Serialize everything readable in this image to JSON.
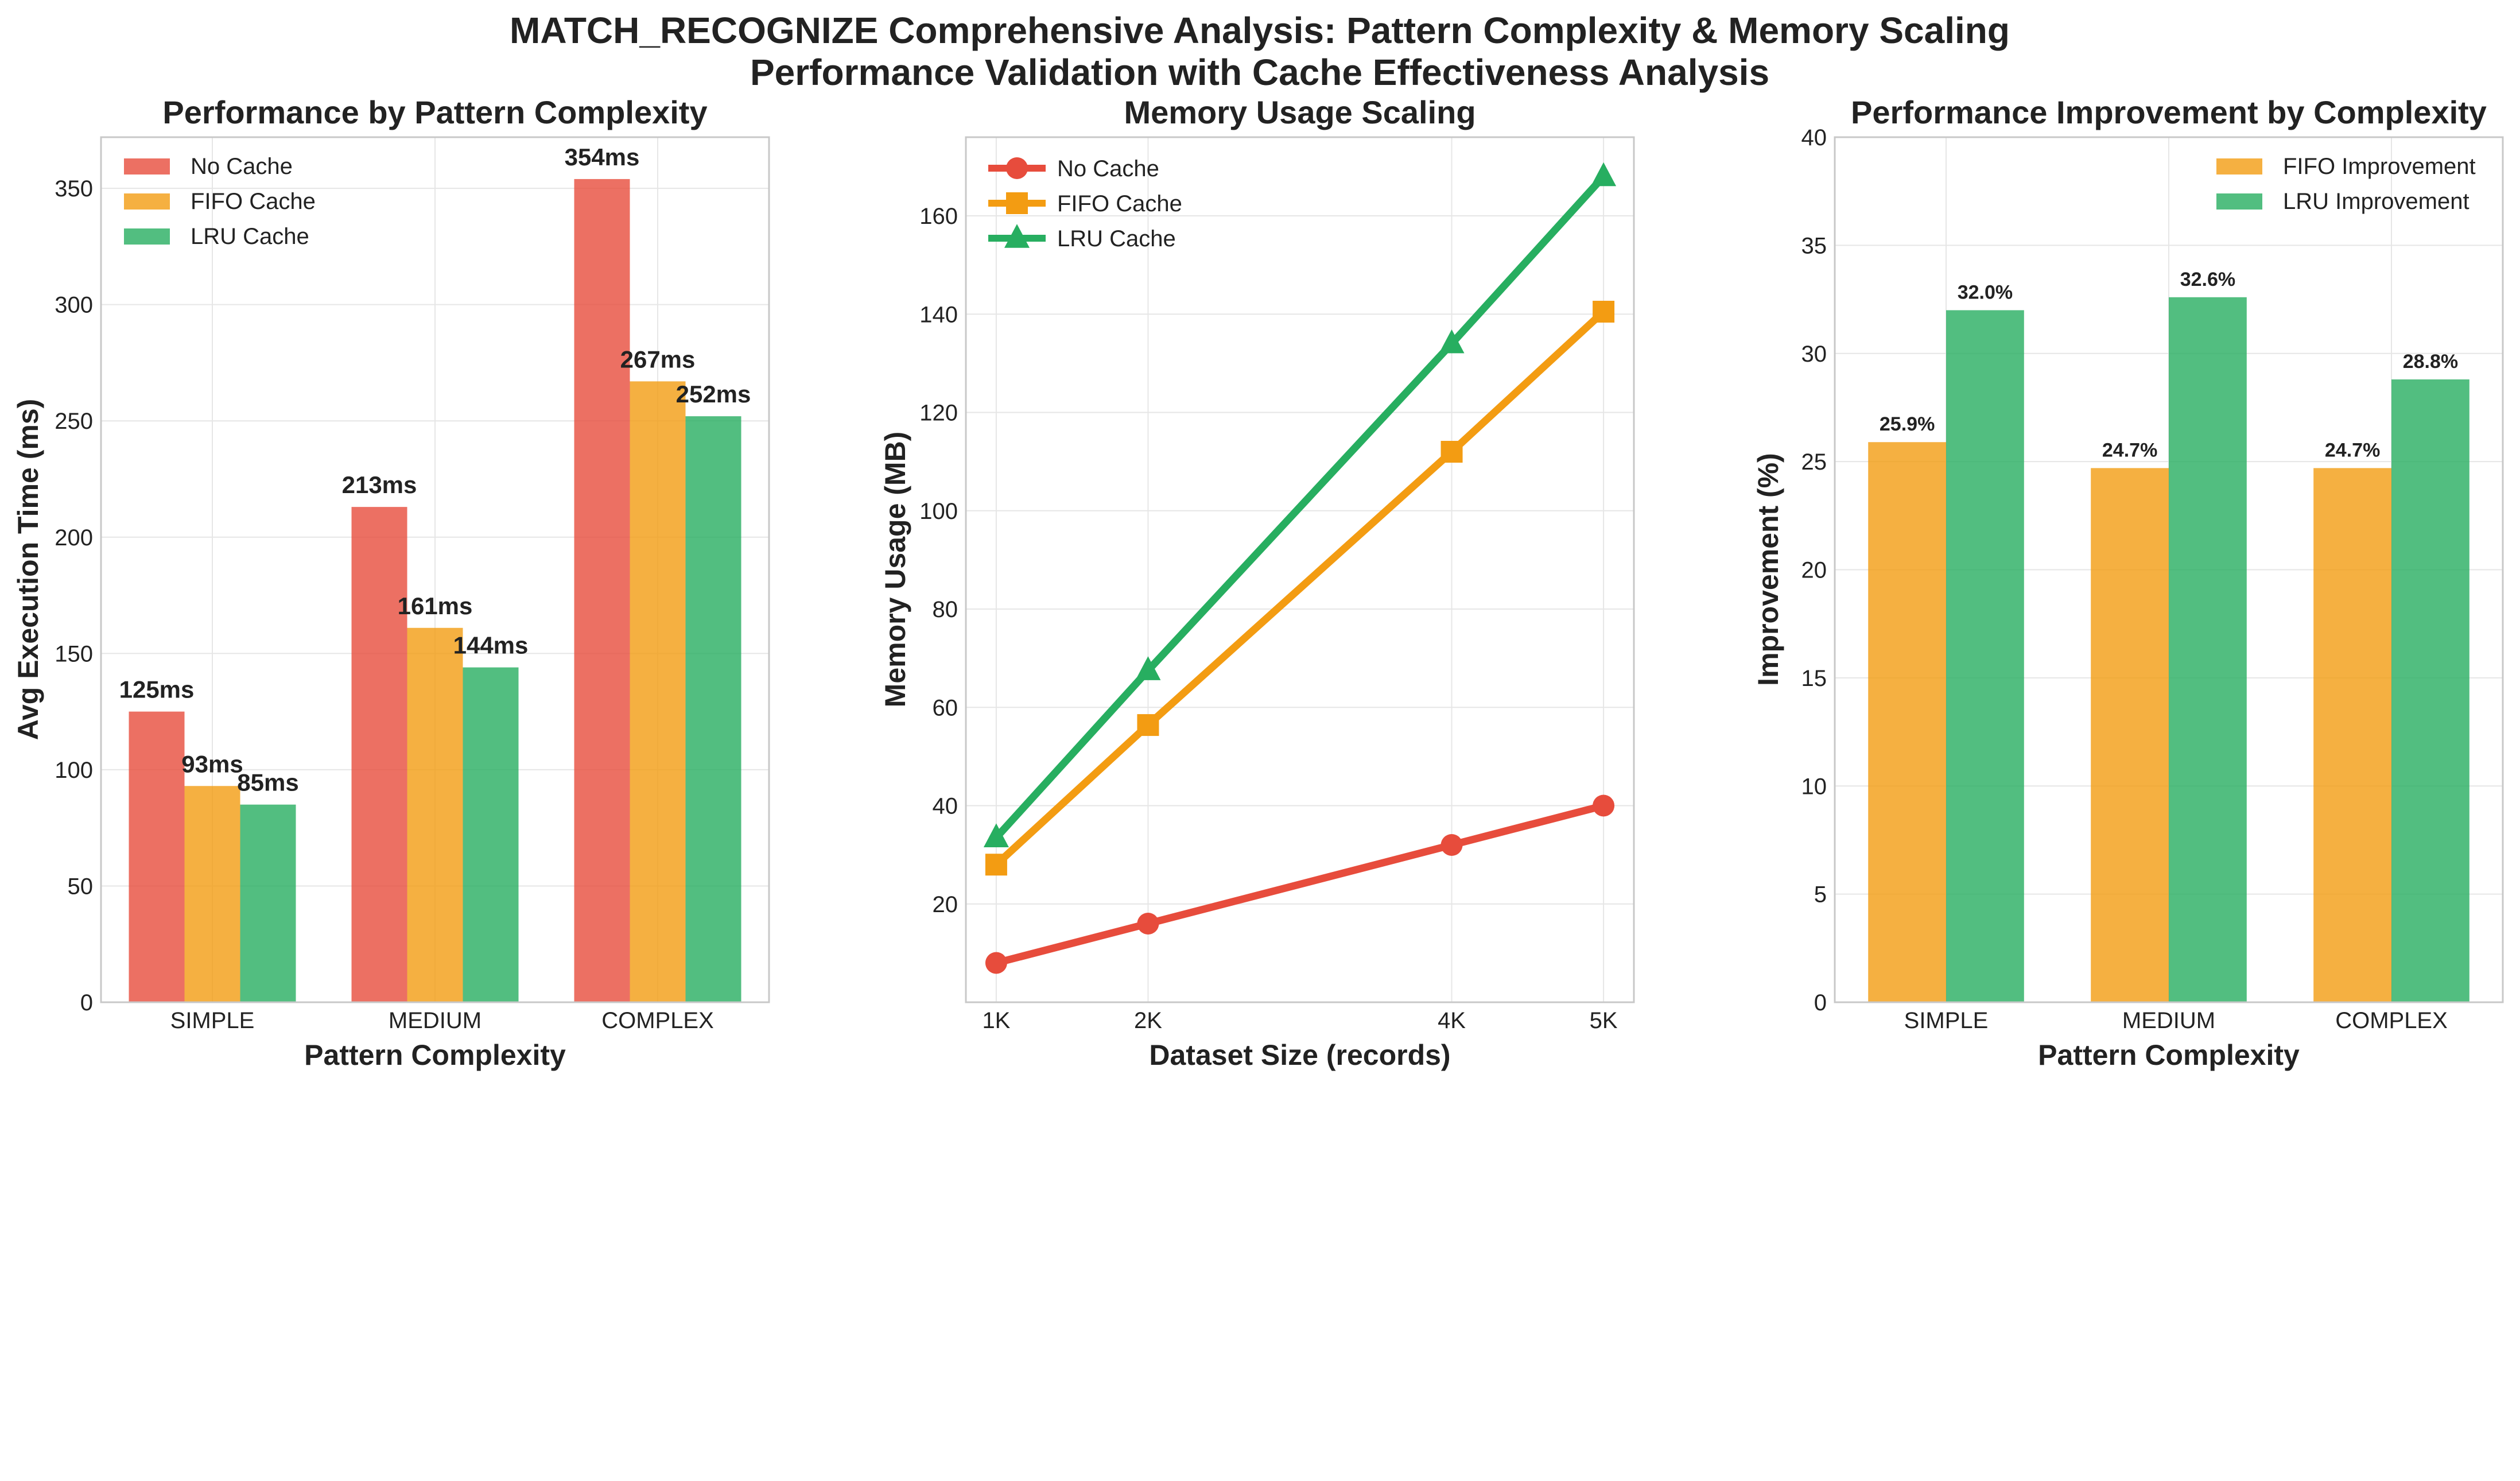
{
  "figure": {
    "title_line1": "MATCH_RECOGNIZE Comprehensive Analysis: Pattern Complexity & Memory Scaling",
    "title_line2": "Performance Validation with Cache Effectiveness Analysis"
  },
  "colors": {
    "no_cache": "#e74c3c",
    "fifo": "#f39c12",
    "lru": "#27ae60"
  },
  "chart_data": [
    {
      "id": "panel1",
      "type": "bar",
      "title": "Performance by Pattern Complexity",
      "xlabel": "Pattern Complexity",
      "ylabel": "Avg Execution Time (ms)",
      "categories": [
        "SIMPLE",
        "MEDIUM",
        "COMPLEX"
      ],
      "ylim": [
        0,
        372
      ],
      "yticks": [
        0,
        50,
        100,
        150,
        200,
        250,
        300,
        350
      ],
      "grid": true,
      "legend_position": "top-left",
      "series": [
        {
          "name": "No Cache",
          "values": [
            125,
            213,
            354
          ],
          "labels": [
            "125ms",
            "213ms",
            "354ms"
          ],
          "color": "#e74c3c"
        },
        {
          "name": "FIFO Cache",
          "values": [
            93,
            161,
            267
          ],
          "labels": [
            "93ms",
            "161ms",
            "267ms"
          ],
          "color": "#f39c12"
        },
        {
          "name": "LRU Cache",
          "values": [
            85,
            144,
            252
          ],
          "labels": [
            "85ms",
            "144ms",
            "252ms"
          ],
          "color": "#27ae60"
        }
      ]
    },
    {
      "id": "panel2",
      "type": "line",
      "title": "Memory Usage Scaling",
      "xlabel": "Dataset Size (records)",
      "ylabel": "Memory Usage (MB)",
      "x": [
        1000,
        2000,
        4000,
        5000
      ],
      "xtick_labels": [
        "1K",
        "2K",
        "4K",
        "5K"
      ],
      "xlim": [
        800,
        5200
      ],
      "ylim": [
        0,
        176
      ],
      "yticks": [
        20,
        40,
        60,
        80,
        100,
        120,
        140,
        160
      ],
      "grid": true,
      "legend_position": "top-left",
      "series": [
        {
          "name": "No Cache",
          "values": [
            8,
            16,
            32,
            40
          ],
          "marker": "circle",
          "color": "#e74c3c"
        },
        {
          "name": "FIFO Cache",
          "values": [
            28,
            56.4,
            112,
            140.5
          ],
          "marker": "square",
          "color": "#f39c12"
        },
        {
          "name": "LRU Cache",
          "values": [
            33.5,
            67.5,
            134,
            168
          ],
          "marker": "triangle",
          "color": "#27ae60"
        }
      ]
    },
    {
      "id": "panel3",
      "type": "bar",
      "title": "Performance Improvement by Complexity",
      "xlabel": "Pattern Complexity",
      "ylabel": "Improvement (%)",
      "categories": [
        "SIMPLE",
        "MEDIUM",
        "COMPLEX"
      ],
      "ylim": [
        0,
        40
      ],
      "yticks": [
        0,
        5,
        10,
        15,
        20,
        25,
        30,
        35,
        40
      ],
      "grid": true,
      "legend_position": "top-right",
      "series": [
        {
          "name": "FIFO Improvement",
          "values": [
            25.9,
            24.7,
            24.7
          ],
          "labels": [
            "25.9%",
            "24.7%",
            "24.7%"
          ],
          "color": "#f39c12"
        },
        {
          "name": "LRU Improvement",
          "values": [
            32.0,
            32.6,
            28.8
          ],
          "labels": [
            "32.0%",
            "32.6%",
            "28.8%"
          ],
          "color": "#27ae60"
        }
      ]
    }
  ]
}
